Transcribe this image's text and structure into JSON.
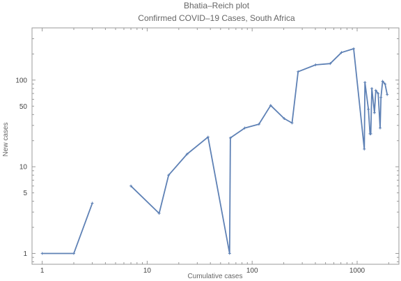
{
  "chart_data": {
    "type": "line",
    "title": "Bhatia–Reich plot",
    "subtitle": "Confirmed COVID–19 Cases, South Africa",
    "xlabel": "Cumulative cases",
    "ylabel": "New cases",
    "x_scale": "log",
    "y_scale": "log",
    "xlim": [
      0.8,
      2500
    ],
    "ylim": [
      0.75,
      400
    ],
    "x_ticks": [
      1,
      10,
      100,
      1000
    ],
    "x_tick_labels": [
      "1",
      "10",
      "100",
      "1000"
    ],
    "y_ticks": [
      1,
      5,
      10,
      50,
      100
    ],
    "y_tick_labels": [
      "1",
      "5",
      "10",
      "50",
      "100"
    ],
    "grid": false,
    "color": "#5e81b5",
    "series": [
      {
        "segments": [
          [
            [
              1,
              1
            ],
            [
              2,
              1
            ],
            [
              3,
              3.8
            ]
          ],
          [
            [
              7,
              6
            ],
            [
              13,
              2.9
            ],
            [
              16,
              8
            ],
            [
              24,
              14
            ],
            [
              38,
              22
            ],
            [
              61,
              1
            ],
            [
              62,
              21.5
            ],
            [
              85,
              28
            ],
            [
              116,
              31
            ],
            [
              150,
              51
            ],
            [
              202,
              36
            ],
            [
              240,
              32
            ],
            [
              274,
              125
            ],
            [
              402,
              150
            ],
            [
              554,
              155
            ],
            [
              709,
              208
            ],
            [
              927,
              230
            ],
            [
              1170,
              16
            ],
            [
              1187,
              94
            ],
            [
              1280,
              46
            ],
            [
              1326,
              24
            ],
            [
              1350,
              24
            ],
            [
              1380,
              80
            ],
            [
              1462,
              42
            ],
            [
              1505,
              76
            ],
            [
              1585,
              70
            ],
            [
              1655,
              28
            ],
            [
              1686,
              63
            ],
            [
              1749,
              97
            ],
            [
              1845,
              90
            ],
            [
              1934,
              68
            ]
          ]
        ]
      }
    ]
  }
}
